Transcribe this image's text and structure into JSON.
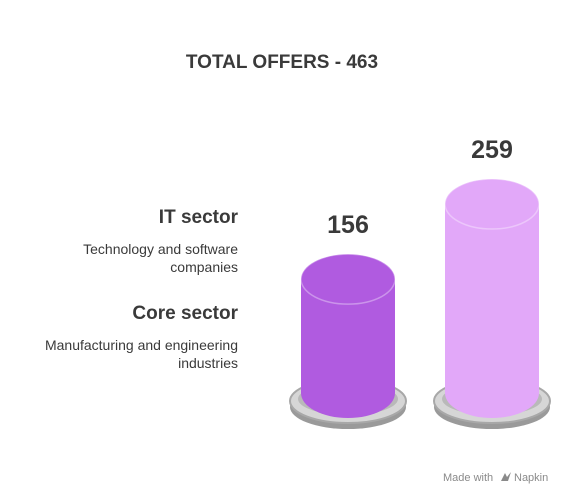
{
  "chart_data": {
    "type": "bar",
    "title": "TOTAL OFFERS - 463",
    "categories": [
      "Core sector",
      "IT sector"
    ],
    "values": [
      156,
      259
    ],
    "colors": [
      "#b05be0",
      "#e2a8f9"
    ],
    "legend": [
      {
        "label": "IT sector",
        "description_lines": [
          "Technology and software",
          "companies"
        ]
      },
      {
        "label": "Core sector",
        "description_lines": [
          "Manufacturing and engineering",
          "industries"
        ]
      }
    ],
    "legend_placement": "left"
  },
  "footer": {
    "made_with": "Made with",
    "brand": "Napkin"
  }
}
